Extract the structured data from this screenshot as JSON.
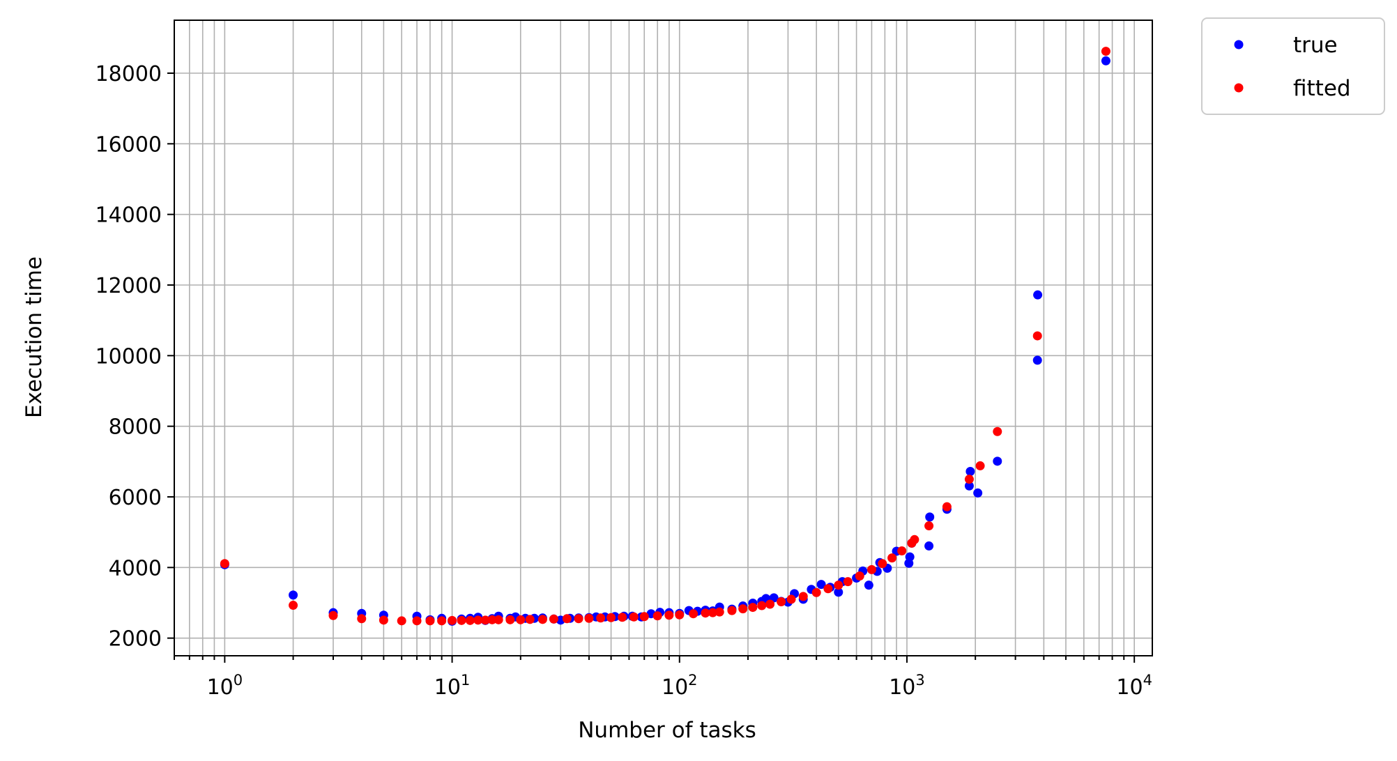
{
  "chart_data": {
    "type": "scatter",
    "xlabel": "Number of tasks",
    "ylabel": "Execution time",
    "xscale": "log",
    "xlim": [
      0.6,
      12000
    ],
    "ylim": [
      1500,
      19500
    ],
    "grid": "both major and minor",
    "legend_position": "outside-top-right",
    "x_tick_labels": [
      {
        "base": "10",
        "exp": "0",
        "value": 1
      },
      {
        "base": "10",
        "exp": "1",
        "value": 10
      },
      {
        "base": "10",
        "exp": "2",
        "value": 100
      },
      {
        "base": "10",
        "exp": "3",
        "value": 1000
      },
      {
        "base": "10",
        "exp": "4",
        "value": 10000
      }
    ],
    "y_ticks": [
      2000,
      4000,
      6000,
      8000,
      10000,
      12000,
      14000,
      16000,
      18000
    ],
    "y_tick_labels": [
      "2000",
      "4000",
      "6000",
      "8000",
      "10000",
      "12000",
      "14000",
      "16000",
      "18000"
    ],
    "series": [
      {
        "name": "true",
        "color": "#0000ff",
        "points": [
          [
            1,
            4080
          ],
          [
            2,
            3220
          ],
          [
            3,
            2720
          ],
          [
            4,
            2700
          ],
          [
            5,
            2650
          ],
          [
            7,
            2620
          ],
          [
            8,
            2520
          ],
          [
            9,
            2560
          ],
          [
            10,
            2480
          ],
          [
            11,
            2540
          ],
          [
            12,
            2560
          ],
          [
            13,
            2590
          ],
          [
            14,
            2500
          ],
          [
            15,
            2550
          ],
          [
            16,
            2620
          ],
          [
            18,
            2560
          ],
          [
            19,
            2600
          ],
          [
            21,
            2560
          ],
          [
            23,
            2560
          ],
          [
            25,
            2570
          ],
          [
            28,
            2540
          ],
          [
            30,
            2510
          ],
          [
            33,
            2560
          ],
          [
            36,
            2570
          ],
          [
            40,
            2580
          ],
          [
            43,
            2600
          ],
          [
            47,
            2600
          ],
          [
            52,
            2610
          ],
          [
            57,
            2620
          ],
          [
            62,
            2620
          ],
          [
            68,
            2600
          ],
          [
            75,
            2690
          ],
          [
            82,
            2730
          ],
          [
            90,
            2720
          ],
          [
            100,
            2700
          ],
          [
            110,
            2780
          ],
          [
            120,
            2760
          ],
          [
            130,
            2790
          ],
          [
            140,
            2770
          ],
          [
            150,
            2880
          ],
          [
            170,
            2820
          ],
          [
            190,
            2910
          ],
          [
            210,
            2990
          ],
          [
            230,
            3040
          ],
          [
            240,
            3120
          ],
          [
            260,
            3140
          ],
          [
            280,
            3040
          ],
          [
            300,
            3020
          ],
          [
            320,
            3260
          ],
          [
            350,
            3100
          ],
          [
            380,
            3380
          ],
          [
            420,
            3520
          ],
          [
            460,
            3440
          ],
          [
            500,
            3300
          ],
          [
            520,
            3600
          ],
          [
            600,
            3700
          ],
          [
            640,
            3900
          ],
          [
            680,
            3500
          ],
          [
            740,
            3890
          ],
          [
            760,
            4140
          ],
          [
            820,
            3980
          ],
          [
            900,
            4460
          ],
          [
            1020,
            4120
          ],
          [
            1030,
            4300
          ],
          [
            1050,
            4690
          ],
          [
            1250,
            4610
          ],
          [
            1260,
            5430
          ],
          [
            1500,
            5650
          ],
          [
            1880,
            6310
          ],
          [
            1900,
            6720
          ],
          [
            2050,
            6110
          ],
          [
            2500,
            7010
          ],
          [
            3750,
            9870
          ],
          [
            3760,
            11720
          ],
          [
            7500,
            18350
          ]
        ]
      },
      {
        "name": "fitted",
        "color": "#ff0000",
        "points": [
          [
            1,
            4110
          ],
          [
            2,
            2930
          ],
          [
            3,
            2640
          ],
          [
            4,
            2550
          ],
          [
            5,
            2510
          ],
          [
            6,
            2490
          ],
          [
            7,
            2490
          ],
          [
            8,
            2490
          ],
          [
            9,
            2490
          ],
          [
            10,
            2500
          ],
          [
            11,
            2500
          ],
          [
            12,
            2500
          ],
          [
            13,
            2510
          ],
          [
            14,
            2510
          ],
          [
            15,
            2520
          ],
          [
            16,
            2520
          ],
          [
            18,
            2520
          ],
          [
            20,
            2520
          ],
          [
            22,
            2530
          ],
          [
            25,
            2530
          ],
          [
            28,
            2540
          ],
          [
            32,
            2550
          ],
          [
            36,
            2550
          ],
          [
            40,
            2560
          ],
          [
            45,
            2570
          ],
          [
            50,
            2580
          ],
          [
            56,
            2590
          ],
          [
            63,
            2600
          ],
          [
            70,
            2610
          ],
          [
            80,
            2630
          ],
          [
            90,
            2650
          ],
          [
            100,
            2660
          ],
          [
            115,
            2690
          ],
          [
            130,
            2710
          ],
          [
            140,
            2720
          ],
          [
            150,
            2740
          ],
          [
            170,
            2780
          ],
          [
            190,
            2830
          ],
          [
            210,
            2870
          ],
          [
            230,
            2920
          ],
          [
            250,
            2960
          ],
          [
            280,
            3030
          ],
          [
            310,
            3100
          ],
          [
            350,
            3180
          ],
          [
            400,
            3290
          ],
          [
            450,
            3400
          ],
          [
            500,
            3500
          ],
          [
            550,
            3600
          ],
          [
            620,
            3760
          ],
          [
            700,
            3940
          ],
          [
            780,
            4110
          ],
          [
            860,
            4270
          ],
          [
            950,
            4470
          ],
          [
            1050,
            4690
          ],
          [
            1080,
            4790
          ],
          [
            1250,
            5180
          ],
          [
            1500,
            5720
          ],
          [
            1880,
            6500
          ],
          [
            2100,
            6880
          ],
          [
            2500,
            7850
          ],
          [
            3750,
            10560
          ],
          [
            7500,
            18620
          ]
        ]
      }
    ]
  },
  "legend": {
    "items": [
      {
        "label": "true",
        "color": "#0000ff"
      },
      {
        "label": "fitted",
        "color": "#ff0000"
      }
    ]
  }
}
